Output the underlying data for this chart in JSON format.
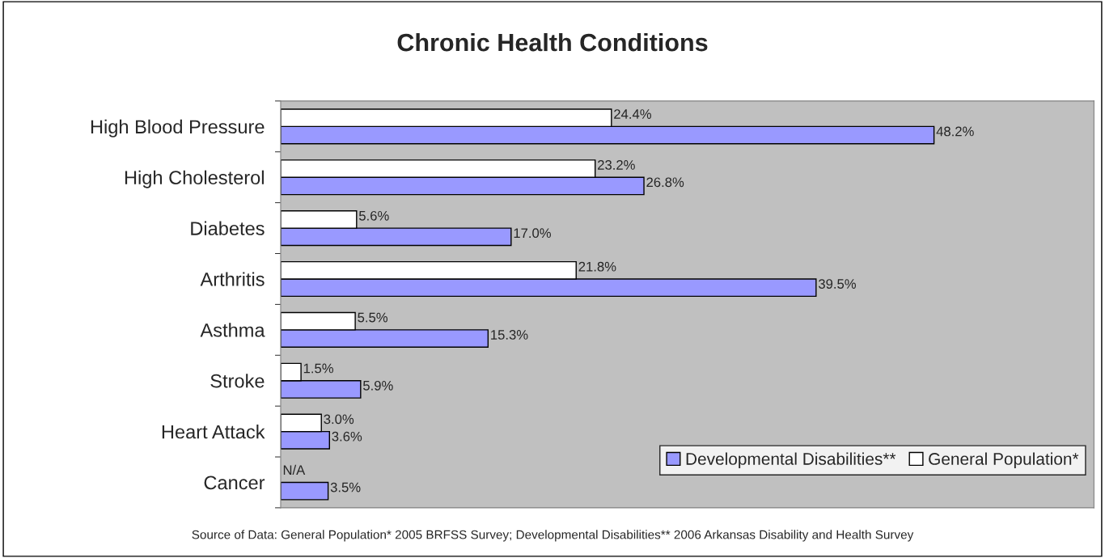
{
  "chart_data": {
    "type": "bar",
    "orientation": "horizontal",
    "title": "Chronic Health Conditions",
    "categories": [
      "High Blood Pressure",
      "High Cholesterol",
      "Diabetes",
      "Arthritis",
      "Asthma",
      "Stroke",
      "Heart Attack",
      "Cancer"
    ],
    "series": [
      {
        "name": "Developmental Disabilities**",
        "color": "#9999ff",
        "values": [
          48.2,
          26.8,
          17.0,
          39.5,
          15.3,
          5.9,
          3.6,
          3.5
        ],
        "value_labels": [
          "48.2%",
          "26.8%",
          "17.0%",
          "39.5%",
          "15.3%",
          "5.9%",
          "3.6%",
          "3.5%"
        ]
      },
      {
        "name": "General Population*",
        "color": "#ffffff",
        "values": [
          24.4,
          23.2,
          5.6,
          21.8,
          5.5,
          1.5,
          3.0,
          null
        ],
        "value_labels": [
          "24.4%",
          "23.2%",
          "5.6%",
          "21.8%",
          "5.5%",
          "1.5%",
          "3.0%",
          "N/A"
        ]
      }
    ],
    "xlim": [
      0,
      60
    ],
    "tick_labels": "y",
    "grid": false,
    "legend": "bottom right",
    "annotations": [
      "Source of Data: General Population* 2005 BRFSS Survey; Developmental Disabilities** 2006 Arkansas Disability and Health Survey"
    ]
  }
}
